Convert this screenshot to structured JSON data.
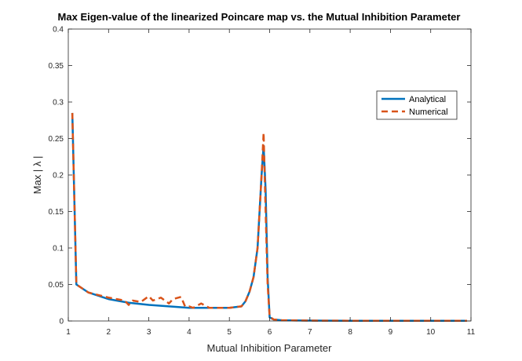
{
  "chart_data": {
    "type": "line",
    "title": "Max Eigen-value of the linearized Poincare map vs. the Mutual Inhibition Parameter",
    "xlabel": "Mutual Inhibition Parameter",
    "ylabel": "Max | λ |",
    "xlim": [
      1,
      11
    ],
    "ylim": [
      0,
      0.4
    ],
    "xticks": [
      1,
      2,
      3,
      4,
      5,
      6,
      7,
      8,
      9,
      10,
      11
    ],
    "xtick_labels": [
      "1",
      "2",
      "3",
      "4",
      "5",
      "6",
      "7",
      "8",
      "9",
      "10",
      "11"
    ],
    "yticks": [
      0,
      0.05,
      0.1,
      0.15,
      0.2,
      0.25,
      0.3,
      0.35,
      0.4
    ],
    "ytick_labels": [
      "0",
      "0.05",
      "0.1",
      "0.15",
      "0.2",
      "0.25",
      "0.3",
      "0.35",
      "0.4"
    ],
    "grid": false,
    "legend_position": "upper-right",
    "series": [
      {
        "name": "Analytical",
        "color": "#0072BD",
        "style": "solid",
        "x": [
          1.1,
          1.2,
          1.5,
          2,
          2.5,
          3,
          3.5,
          4,
          4.5,
          5,
          5.3,
          5.4,
          5.5,
          5.6,
          5.7,
          5.8,
          5.85,
          5.9,
          5.95,
          6.0,
          6.1,
          6.3,
          7,
          8,
          9,
          10,
          10.9
        ],
        "y": [
          0.285,
          0.05,
          0.039,
          0.03,
          0.025,
          0.022,
          0.02,
          0.018,
          0.018,
          0.018,
          0.02,
          0.027,
          0.04,
          0.06,
          0.1,
          0.2,
          0.24,
          0.18,
          0.06,
          0.005,
          0.002,
          0.001,
          0.0005,
          0.0003,
          0.0003,
          0.0003,
          0.0003
        ]
      },
      {
        "name": "Numerical",
        "color": "#D95319",
        "style": "dashed",
        "x": [
          1.1,
          1.2,
          1.5,
          2,
          2.2,
          2.4,
          2.5,
          2.6,
          2.8,
          3.0,
          3.1,
          3.3,
          3.5,
          3.6,
          3.8,
          3.9,
          4.0,
          4.1,
          4.2,
          4.3,
          4.5,
          5,
          5.3,
          5.4,
          5.5,
          5.6,
          5.7,
          5.8,
          5.85,
          5.9,
          5.95,
          6.0,
          6.1,
          6.3,
          7,
          8,
          9,
          10,
          10.9
        ],
        "y": [
          0.285,
          0.05,
          0.039,
          0.032,
          0.03,
          0.028,
          0.022,
          0.028,
          0.026,
          0.034,
          0.028,
          0.032,
          0.024,
          0.03,
          0.033,
          0.02,
          0.02,
          0.018,
          0.021,
          0.024,
          0.018,
          0.018,
          0.02,
          0.027,
          0.04,
          0.06,
          0.1,
          0.2,
          0.258,
          0.15,
          0.05,
          0.006,
          0.002,
          0.001,
          0.0005,
          0.0003,
          0.0003,
          0.0003,
          0.0003
        ]
      }
    ]
  }
}
